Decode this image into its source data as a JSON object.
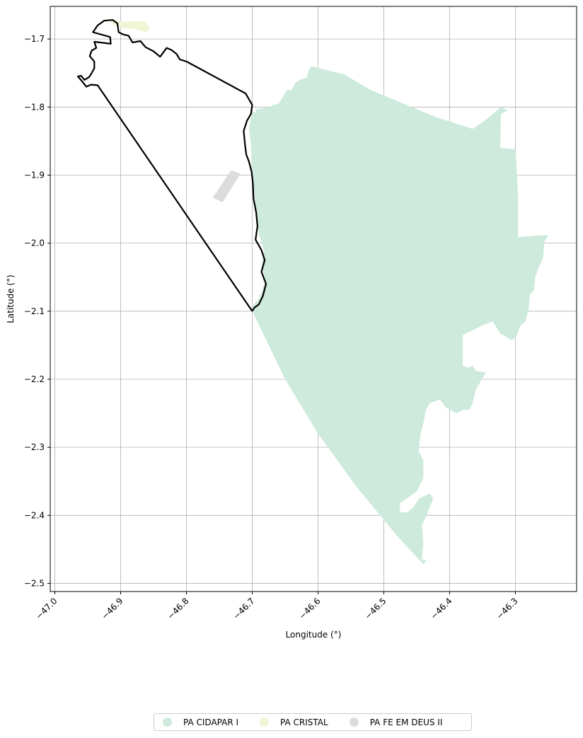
{
  "chart_data": {
    "type": "map",
    "xlabel": "Longitude (°)",
    "ylabel": "Latitude (°)",
    "xlim": [
      -47.007,
      -46.207
    ],
    "ylim": [
      -2.512,
      -1.652
    ],
    "x_ticks": [
      -47.0,
      -46.9,
      -46.8,
      -46.7,
      -46.6,
      -46.5,
      -46.4,
      -46.3
    ],
    "x_tick_labels": [
      "−47.0",
      "−46.9",
      "−46.8",
      "−46.7",
      "−46.6",
      "−46.5",
      "−46.4",
      "−46.3"
    ],
    "y_ticks": [
      -1.7,
      -1.8,
      -1.9,
      -2.0,
      -2.1,
      -2.2,
      -2.3,
      -2.4,
      -2.5
    ],
    "y_tick_labels": [
      "−1.7",
      "−1.8",
      "−1.9",
      "−2.0",
      "−2.1",
      "−2.2",
      "−2.3",
      "−2.4",
      "−2.5"
    ],
    "grid": true,
    "legend_position": "bottom-center",
    "series": [
      {
        "name": "PA CIDAPAR I",
        "color": "#cdeadc",
        "polygon": [
          [
            -46.699,
            -1.807
          ],
          [
            -46.695,
            -1.808
          ],
          [
            -46.694,
            -1.803
          ],
          [
            -46.685,
            -1.802
          ],
          [
            -46.675,
            -1.8
          ],
          [
            -46.668,
            -1.797
          ],
          [
            -46.66,
            -1.795
          ],
          [
            -46.652,
            -1.783
          ],
          [
            -46.648,
            -1.775
          ],
          [
            -46.64,
            -1.775
          ],
          [
            -46.635,
            -1.765
          ],
          [
            -46.628,
            -1.76
          ],
          [
            -46.622,
            -1.758
          ],
          [
            -46.617,
            -1.757
          ],
          [
            -46.614,
            -1.745
          ],
          [
            -46.61,
            -1.74
          ],
          [
            -46.59,
            -1.745
          ],
          [
            -46.56,
            -1.752
          ],
          [
            -46.52,
            -1.775
          ],
          [
            -46.47,
            -1.795
          ],
          [
            -46.42,
            -1.815
          ],
          [
            -46.365,
            -1.832
          ],
          [
            -46.34,
            -1.815
          ],
          [
            -46.322,
            -1.8
          ],
          [
            -46.312,
            -1.805
          ],
          [
            -46.322,
            -1.81
          ],
          [
            -46.323,
            -1.86
          ],
          [
            -46.3,
            -1.862
          ],
          [
            -46.298,
            -1.892
          ],
          [
            -46.296,
            -1.935
          ],
          [
            -46.296,
            -1.991
          ],
          [
            -46.268,
            -1.989
          ],
          [
            -46.25,
            -1.988
          ],
          [
            -46.256,
            -1.998
          ],
          [
            -46.258,
            -2.022
          ],
          [
            -46.265,
            -2.037
          ],
          [
            -46.27,
            -2.05
          ],
          [
            -46.272,
            -2.07
          ],
          [
            -46.278,
            -2.075
          ],
          [
            -46.28,
            -2.098
          ],
          [
            -46.285,
            -2.115
          ],
          [
            -46.293,
            -2.122
          ],
          [
            -46.297,
            -2.135
          ],
          [
            -46.305,
            -2.143
          ],
          [
            -46.315,
            -2.137
          ],
          [
            -46.323,
            -2.133
          ],
          [
            -46.33,
            -2.122
          ],
          [
            -46.335,
            -2.115
          ],
          [
            -46.348,
            -2.12
          ],
          [
            -46.38,
            -2.135
          ],
          [
            -46.38,
            -2.18
          ],
          [
            -46.372,
            -2.183
          ],
          [
            -46.365,
            -2.18
          ],
          [
            -46.36,
            -2.188
          ],
          [
            -46.345,
            -2.19
          ],
          [
            -46.36,
            -2.215
          ],
          [
            -46.365,
            -2.235
          ],
          [
            -46.37,
            -2.245
          ],
          [
            -46.38,
            -2.245
          ],
          [
            -46.39,
            -2.25
          ],
          [
            -46.405,
            -2.242
          ],
          [
            -46.415,
            -2.23
          ],
          [
            -46.43,
            -2.235
          ],
          [
            -46.436,
            -2.245
          ],
          [
            -46.44,
            -2.265
          ],
          [
            -46.445,
            -2.285
          ],
          [
            -46.447,
            -2.305
          ],
          [
            -46.44,
            -2.32
          ],
          [
            -46.44,
            -2.345
          ],
          [
            -46.45,
            -2.365
          ],
          [
            -46.475,
            -2.382
          ],
          [
            -46.476,
            -2.395
          ],
          [
            -46.465,
            -2.396
          ],
          [
            -46.455,
            -2.388
          ],
          [
            -46.446,
            -2.375
          ],
          [
            -46.43,
            -2.368
          ],
          [
            -46.425,
            -2.375
          ],
          [
            -46.435,
            -2.4
          ],
          [
            -46.442,
            -2.415
          ],
          [
            -46.44,
            -2.44
          ],
          [
            -46.442,
            -2.465
          ],
          [
            -46.435,
            -2.467
          ],
          [
            -46.44,
            -2.472
          ],
          [
            -46.48,
            -2.43
          ],
          [
            -46.54,
            -2.36
          ],
          [
            -46.6,
            -2.28
          ],
          [
            -46.65,
            -2.2
          ],
          [
            -46.7,
            -2.1
          ],
          [
            -46.698,
            -2.09
          ],
          [
            -46.69,
            -2.082
          ],
          [
            -46.685,
            -2.07
          ],
          [
            -46.68,
            -2.055
          ],
          [
            -46.686,
            -2.03
          ],
          [
            -46.682,
            -2.012
          ],
          [
            -46.69,
            -1.985
          ],
          [
            -46.695,
            -1.96
          ],
          [
            -46.696,
            -1.93
          ],
          [
            -46.7,
            -1.91
          ],
          [
            -46.701,
            -1.88
          ],
          [
            -46.702,
            -1.855
          ],
          [
            -46.705,
            -1.83
          ],
          [
            -46.702,
            -1.815
          ]
        ]
      },
      {
        "name": "PA CRISTAL",
        "color": "#eef6d6",
        "polygon": [
          [
            -46.92,
            -1.67
          ],
          [
            -46.905,
            -1.673
          ],
          [
            -46.89,
            -1.675
          ],
          [
            -46.875,
            -1.673
          ],
          [
            -46.862,
            -1.675
          ],
          [
            -46.855,
            -1.685
          ],
          [
            -46.862,
            -1.69
          ],
          [
            -46.88,
            -1.685
          ],
          [
            -46.897,
            -1.684
          ],
          [
            -46.91,
            -1.68
          ]
        ]
      },
      {
        "name": "PA FE EM DEUS II",
        "color": "#dcdcdc",
        "polygon": [
          [
            -46.732,
            -1.893
          ],
          [
            -46.718,
            -1.898
          ],
          [
            -46.745,
            -1.94
          ],
          [
            -46.76,
            -1.933
          ]
        ]
      }
    ],
    "boundary": {
      "color": "#000000",
      "polyline": [
        [
          -46.7,
          -2.1
        ],
        [
          -46.935,
          -1.768
        ],
        [
          -46.945,
          -1.767
        ],
        [
          -46.952,
          -1.77
        ],
        [
          -46.958,
          -1.763
        ],
        [
          -46.965,
          -1.755
        ],
        [
          -46.96,
          -1.754
        ],
        [
          -46.955,
          -1.76
        ],
        [
          -46.948,
          -1.756
        ],
        [
          -46.944,
          -1.75
        ],
        [
          -46.94,
          -1.743
        ],
        [
          -46.94,
          -1.733
        ],
        [
          -46.947,
          -1.725
        ],
        [
          -46.944,
          -1.717
        ],
        [
          -46.937,
          -1.713
        ],
        [
          -46.94,
          -1.704
        ],
        [
          -46.915,
          -1.707
        ],
        [
          -46.916,
          -1.697
        ],
        [
          -46.942,
          -1.69
        ],
        [
          -46.935,
          -1.68
        ],
        [
          -46.925,
          -1.673
        ],
        [
          -46.912,
          -1.672
        ],
        [
          -46.905,
          -1.677
        ],
        [
          -46.903,
          -1.69
        ],
        [
          -46.897,
          -1.693
        ],
        [
          -46.888,
          -1.695
        ],
        [
          -46.882,
          -1.705
        ],
        [
          -46.87,
          -1.703
        ],
        [
          -46.862,
          -1.712
        ],
        [
          -46.85,
          -1.718
        ],
        [
          -46.84,
          -1.726
        ],
        [
          -46.83,
          -1.713
        ],
        [
          -46.823,
          -1.716
        ],
        [
          -46.815,
          -1.722
        ],
        [
          -46.81,
          -1.73
        ],
        [
          -46.8,
          -1.733
        ],
        [
          -46.71,
          -1.78
        ],
        [
          -46.7,
          -1.797
        ],
        [
          -46.702,
          -1.81
        ],
        [
          -46.708,
          -1.82
        ],
        [
          -46.713,
          -1.835
        ],
        [
          -46.711,
          -1.855
        ],
        [
          -46.709,
          -1.87
        ],
        [
          -46.705,
          -1.88
        ],
        [
          -46.701,
          -1.895
        ],
        [
          -46.699,
          -1.912
        ],
        [
          -46.698,
          -1.935
        ],
        [
          -46.694,
          -1.955
        ],
        [
          -46.692,
          -1.975
        ],
        [
          -46.695,
          -1.995
        ],
        [
          -46.686,
          -2.01
        ],
        [
          -46.681,
          -2.025
        ],
        [
          -46.686,
          -2.042
        ],
        [
          -46.679,
          -2.06
        ],
        [
          -46.684,
          -2.078
        ],
        [
          -46.69,
          -2.09
        ],
        [
          -46.697,
          -2.095
        ],
        [
          -46.7,
          -2.1
        ]
      ]
    }
  },
  "legend": {
    "items": [
      {
        "label": "PA CIDAPAR I",
        "color": "#cdeadc"
      },
      {
        "label": "PA CRISTAL",
        "color": "#eef6d6"
      },
      {
        "label": "PA FE EM DEUS II",
        "color": "#dcdcdc"
      }
    ]
  }
}
